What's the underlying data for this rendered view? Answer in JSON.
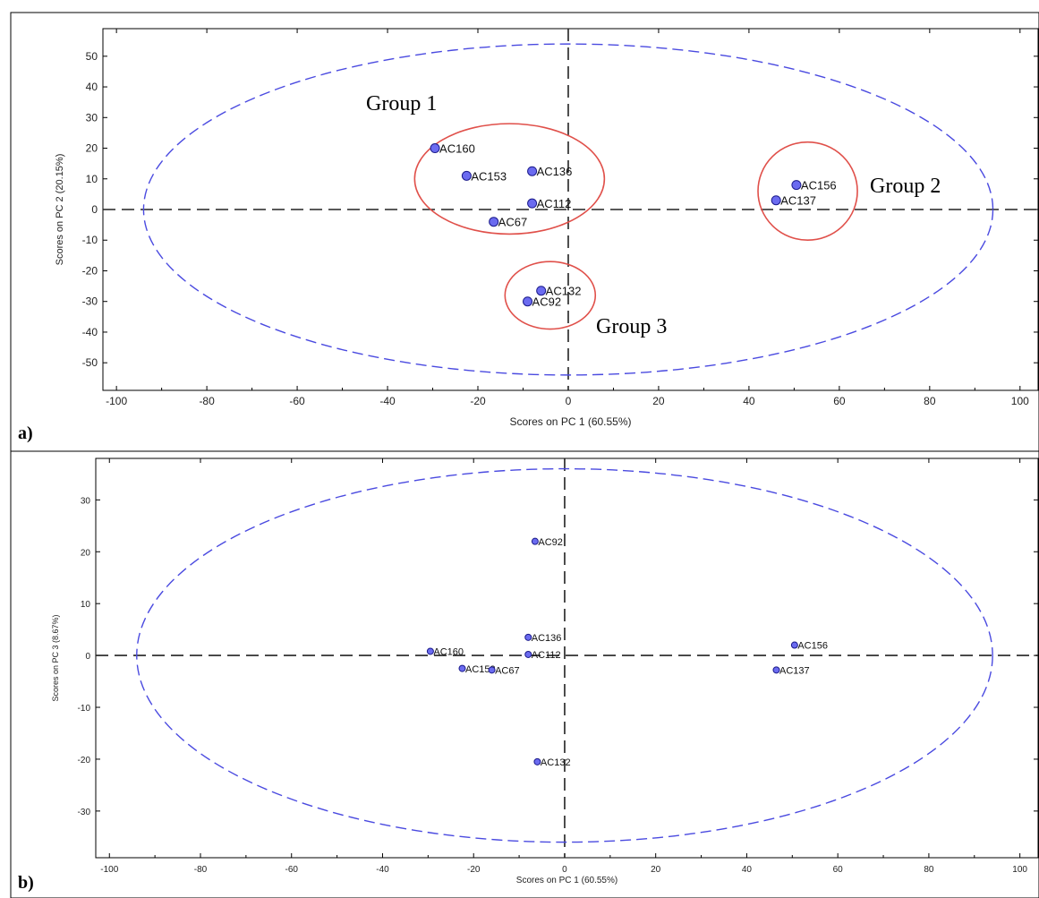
{
  "chart_data": [
    {
      "type": "scatter",
      "panel_label": "a)",
      "xlabel": "Scores on PC 1 (60.55%)",
      "ylabel": "Scores on PC 2 (20.15%)",
      "xlim": [
        -103,
        104
      ],
      "ylim": [
        -59,
        59
      ],
      "xticks": [
        -100,
        -80,
        -60,
        -40,
        -20,
        0,
        20,
        40,
        60,
        80,
        100
      ],
      "yticks": [
        50,
        40,
        30,
        20,
        10,
        0,
        -10,
        -20,
        -30,
        -40,
        -50
      ],
      "grid": false,
      "reference_lines": {
        "x": 0,
        "y": 0,
        "style": "dashed"
      },
      "confidence_ellipse": {
        "cx": 0,
        "cy": 0,
        "rx": 94,
        "ry": 54,
        "color": "#4a4ae0"
      },
      "points": [
        {
          "label": "AC160",
          "x": -29.5,
          "y": 20
        },
        {
          "label": "AC153",
          "x": -22.5,
          "y": 11
        },
        {
          "label": "AC136",
          "x": -8,
          "y": 12.5
        },
        {
          "label": "AC112",
          "x": -8,
          "y": 2
        },
        {
          "label": "AC67",
          "x": -16.5,
          "y": -4
        },
        {
          "label": "AC156",
          "x": 50.5,
          "y": 8
        },
        {
          "label": "AC137",
          "x": 46,
          "y": 3
        },
        {
          "label": "AC132",
          "x": -6,
          "y": -26.5
        },
        {
          "label": "AC92",
          "x": -9,
          "y": -30
        }
      ],
      "groups": [
        {
          "label": "Group 1",
          "cx": -13,
          "cy": 10,
          "rx": 21,
          "ry": 18
        },
        {
          "label": "Group 2",
          "cx": 53,
          "cy": 6,
          "rx": 11,
          "ry": 16
        },
        {
          "label": "Group 3",
          "cx": -4,
          "cy": -28,
          "rx": 10,
          "ry": 11
        }
      ]
    },
    {
      "type": "scatter",
      "panel_label": "b)",
      "xlabel": "Scores on PC 1 (60.55%)",
      "ylabel": "Scores on PC 3 (8.67%)",
      "xlim": [
        -103,
        104
      ],
      "ylim": [
        -39,
        38
      ],
      "xticks": [
        -100,
        -80,
        -60,
        -40,
        -20,
        0,
        20,
        40,
        60,
        80,
        100
      ],
      "yticks": [
        30,
        20,
        10,
        0,
        -10,
        -20,
        -30
      ],
      "grid": false,
      "reference_lines": {
        "x": 0,
        "y": 0,
        "style": "dashed"
      },
      "confidence_ellipse": {
        "cx": 0,
        "cy": 0,
        "rx": 94,
        "ry": 36,
        "color": "#4a4ae0"
      },
      "points": [
        {
          "label": "AC92",
          "x": -6.5,
          "y": 22
        },
        {
          "label": "AC136",
          "x": -8,
          "y": 3.5
        },
        {
          "label": "AC160",
          "x": -29.5,
          "y": 0.8
        },
        {
          "label": "AC112",
          "x": -8,
          "y": 0.2
        },
        {
          "label": "AC153",
          "x": -22.5,
          "y": -2.5
        },
        {
          "label": "AC67",
          "x": -16,
          "y": -2.8
        },
        {
          "label": "AC156",
          "x": 50.5,
          "y": 2
        },
        {
          "label": "AC137",
          "x": 46.5,
          "y": -2.8
        },
        {
          "label": "AC132",
          "x": -6,
          "y": -20.5
        }
      ],
      "groups": []
    }
  ]
}
